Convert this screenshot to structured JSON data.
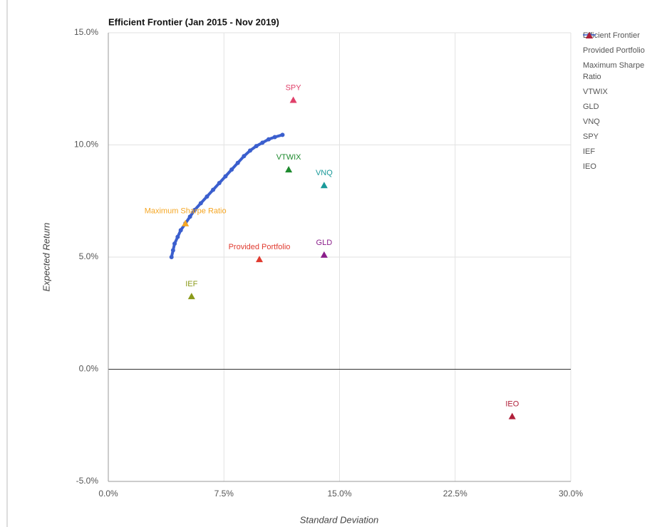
{
  "chart_data": {
    "type": "scatter",
    "title": "Efficient Frontier (Jan 2015 - Nov 2019)",
    "x_label": "Standard Deviation",
    "y_label": "Expected Return",
    "xlim": [
      0,
      30
    ],
    "ylim": [
      -5,
      15
    ],
    "xticks": [
      {
        "value": 0,
        "label": "0.0%"
      },
      {
        "value": 7.5,
        "label": "7.5%"
      },
      {
        "value": 15,
        "label": "15.0%"
      },
      {
        "value": 22.5,
        "label": "22.5%"
      },
      {
        "value": 30,
        "label": "30.0%"
      }
    ],
    "yticks": [
      {
        "value": -5,
        "label": "-5.0%"
      },
      {
        "value": 0,
        "label": "0.0%"
      },
      {
        "value": 5,
        "label": "5.0%"
      },
      {
        "value": 10,
        "label": "10.0%"
      },
      {
        "value": 15,
        "label": "15.0%"
      }
    ],
    "grid": true,
    "legend": "right",
    "series": [
      {
        "name": "Efficient Frontier",
        "color": "#3b5fce",
        "marker": "line",
        "x": [
          4.1,
          4.2,
          4.3,
          4.5,
          4.7,
          5.0,
          5.3,
          5.6,
          6.0,
          6.4,
          6.8,
          7.2,
          7.6,
          8.0,
          8.4,
          8.8,
          9.2,
          9.6,
          10.0,
          10.4,
          10.8,
          11.3
        ],
        "values": [
          5.0,
          5.3,
          5.6,
          5.9,
          6.2,
          6.5,
          6.8,
          7.1,
          7.4,
          7.7,
          8.0,
          8.3,
          8.6,
          8.9,
          9.2,
          9.5,
          9.75,
          9.95,
          10.1,
          10.25,
          10.35,
          10.45
        ]
      },
      {
        "name": "Provided Portfolio",
        "color": "#e03a2f",
        "marker": "triangle",
        "x": [
          9.8
        ],
        "values": [
          4.9
        ]
      },
      {
        "name": "Maximum Sharpe Ratio",
        "color": "#f5a623",
        "marker": "triangle",
        "x": [
          5.0
        ],
        "values": [
          6.5
        ]
      },
      {
        "name": "VTWIX",
        "color": "#1e8a2e",
        "marker": "triangle",
        "x": [
          11.7
        ],
        "values": [
          8.9
        ]
      },
      {
        "name": "GLD",
        "color": "#8b1e8b",
        "marker": "triangle",
        "x": [
          14.0
        ],
        "values": [
          5.1
        ]
      },
      {
        "name": "VNQ",
        "color": "#1a9a9a",
        "marker": "triangle",
        "x": [
          14.0
        ],
        "values": [
          8.2
        ]
      },
      {
        "name": "SPY",
        "color": "#e0406a",
        "marker": "triangle",
        "x": [
          12.0
        ],
        "values": [
          12.0
        ]
      },
      {
        "name": "IEF",
        "color": "#8a9a1a",
        "marker": "triangle",
        "x": [
          5.4
        ],
        "values": [
          3.25
        ]
      },
      {
        "name": "IEO",
        "color": "#b0203a",
        "marker": "triangle",
        "x": [
          26.2
        ],
        "values": [
          -2.1
        ]
      }
    ]
  }
}
